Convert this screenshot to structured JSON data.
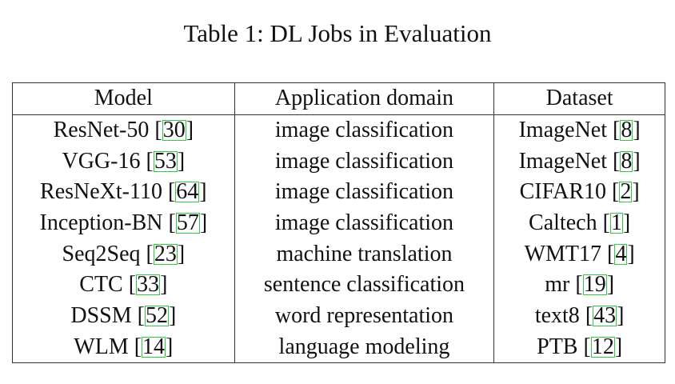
{
  "caption": "Table 1: DL Jobs in Evaluation",
  "table": {
    "headers": [
      "Model",
      "Application domain",
      "Dataset"
    ],
    "rows": [
      {
        "model": "ResNet-50",
        "model_ref": "30",
        "domain": "image classification",
        "dataset": "ImageNet",
        "dataset_ref": "8"
      },
      {
        "model": "VGG-16",
        "model_ref": "53",
        "domain": "image classification",
        "dataset": "ImageNet",
        "dataset_ref": "8"
      },
      {
        "model": "ResNeXt-110",
        "model_ref": "64",
        "domain": "image classification",
        "dataset": "CIFAR10",
        "dataset_ref": "2"
      },
      {
        "model": "Inception-BN",
        "model_ref": "57",
        "domain": "image classification",
        "dataset": "Caltech",
        "dataset_ref": "1"
      },
      {
        "model": "Seq2Seq",
        "model_ref": "23",
        "domain": "machine translation",
        "dataset": "WMT17",
        "dataset_ref": "4"
      },
      {
        "model": "CTC",
        "model_ref": "33",
        "domain": "sentence classification",
        "dataset": "mr",
        "dataset_ref": "19"
      },
      {
        "model": "DSSM",
        "model_ref": "52",
        "domain": "word representation",
        "dataset": "text8",
        "dataset_ref": "43"
      },
      {
        "model": "WLM",
        "model_ref": "14",
        "domain": "language modeling",
        "dataset": "PTB",
        "dataset_ref": "12"
      }
    ]
  },
  "colors": {
    "citation_box": "#2ecc40",
    "rule": "#333333",
    "text": "#111111"
  }
}
